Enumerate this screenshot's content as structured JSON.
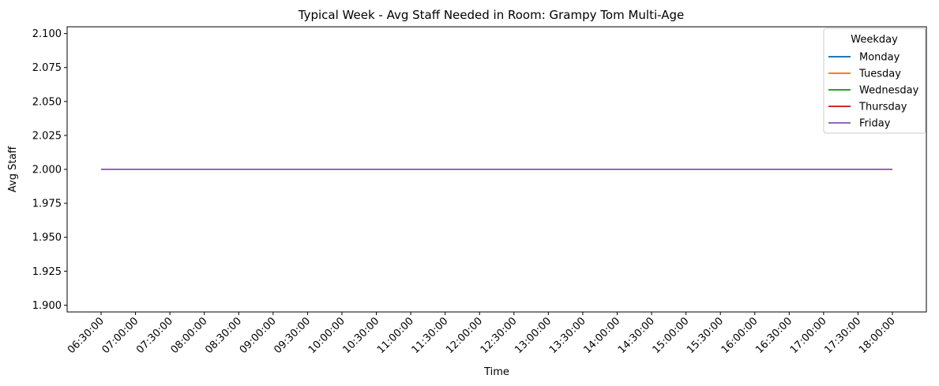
{
  "chart_data": {
    "type": "line",
    "title": "Typical Week - Avg Staff Needed in Room: Grampy Tom Multi-Age",
    "xlabel": "Time",
    "ylabel": "Avg Staff",
    "categories": [
      "06:30:00",
      "07:00:00",
      "07:30:00",
      "08:00:00",
      "08:30:00",
      "09:00:00",
      "09:30:00",
      "10:00:00",
      "10:30:00",
      "11:00:00",
      "11:30:00",
      "12:00:00",
      "12:30:00",
      "13:00:00",
      "13:30:00",
      "14:00:00",
      "14:30:00",
      "15:00:00",
      "15:30:00",
      "16:00:00",
      "16:30:00",
      "17:00:00",
      "17:30:00",
      "18:00:00"
    ],
    "yticks": [
      "1.900",
      "1.925",
      "1.950",
      "1.975",
      "2.000",
      "2.025",
      "2.050",
      "2.075",
      "2.100"
    ],
    "ylim": [
      1.895,
      2.105
    ],
    "grid": false,
    "legend": {
      "title": "Weekday",
      "placement": "top-right"
    },
    "series": [
      {
        "name": "Monday",
        "color": "#1f77b4",
        "values": [
          2,
          2,
          2,
          2,
          2,
          2,
          2,
          2,
          2,
          2,
          2,
          2,
          2,
          2,
          2,
          2,
          2,
          2,
          2,
          2,
          2,
          2,
          2,
          2
        ]
      },
      {
        "name": "Tuesday",
        "color": "#ff7f0e",
        "values": [
          2,
          2,
          2,
          2,
          2,
          2,
          2,
          2,
          2,
          2,
          2,
          2,
          2,
          2,
          2,
          2,
          2,
          2,
          2,
          2,
          2,
          2,
          2,
          2
        ]
      },
      {
        "name": "Wednesday",
        "color": "#2ca02c",
        "values": [
          2,
          2,
          2,
          2,
          2,
          2,
          2,
          2,
          2,
          2,
          2,
          2,
          2,
          2,
          2,
          2,
          2,
          2,
          2,
          2,
          2,
          2,
          2,
          2
        ]
      },
      {
        "name": "Thursday",
        "color": "#d62728",
        "values": [
          2,
          2,
          2,
          2,
          2,
          2,
          2,
          2,
          2,
          2,
          2,
          2,
          2,
          2,
          2,
          2,
          2,
          2,
          2,
          2,
          2,
          2,
          2,
          2
        ]
      },
      {
        "name": "Friday",
        "color": "#9467bd",
        "values": [
          2,
          2,
          2,
          2,
          2,
          2,
          2,
          2,
          2,
          2,
          2,
          2,
          2,
          2,
          2,
          2,
          2,
          2,
          2,
          2,
          2,
          2,
          2,
          2
        ]
      }
    ]
  }
}
